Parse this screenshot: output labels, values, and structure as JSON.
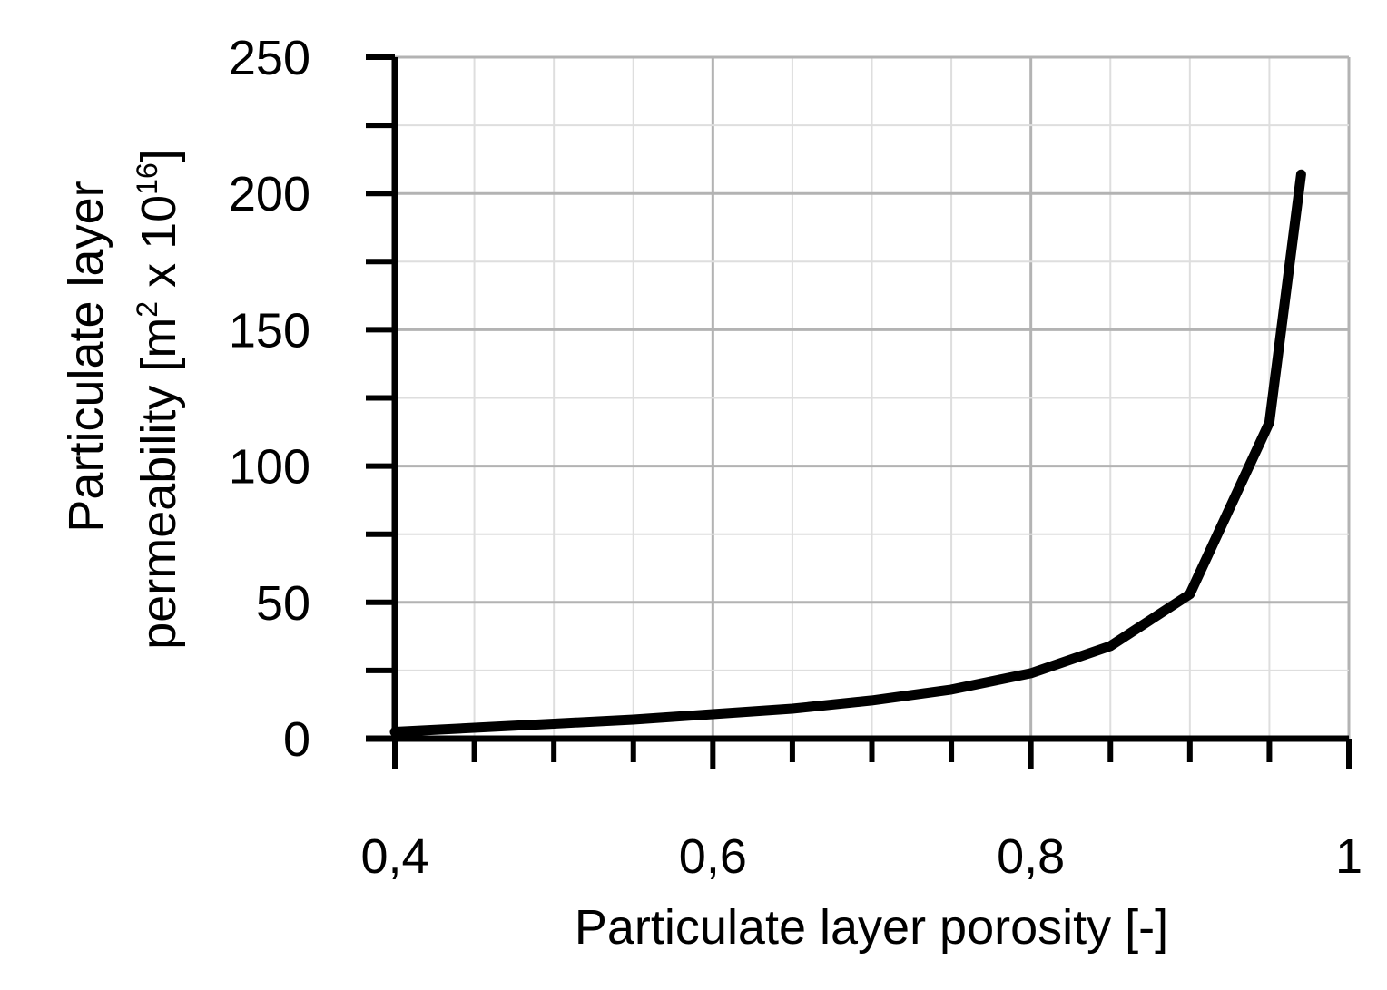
{
  "chart_data": {
    "type": "line",
    "title": "",
    "xlabel": "Particulate layer porosity [-]",
    "ylabel": {
      "line1": "Particulate layer",
      "line2_prefix": "permeability [m",
      "line2_sup1": "2",
      "line2_mid": " x 10",
      "line2_sup2": "16",
      "line2_suffix": "]"
    },
    "xlim": [
      0.4,
      1.0
    ],
    "ylim": [
      0,
      250
    ],
    "x_major_ticks": [
      0.4,
      0.6,
      0.8,
      1.0
    ],
    "x_tick_labels": [
      "0,4",
      "0,6",
      "0,8",
      "1"
    ],
    "x_minor_step": 0.05,
    "y_major_ticks": [
      0,
      50,
      100,
      150,
      200,
      250
    ],
    "y_tick_labels": [
      "0",
      "50",
      "100",
      "150",
      "200",
      "250"
    ],
    "y_minor_step": 25,
    "grid": true,
    "legend": "none",
    "series": [
      {
        "color": "#000000",
        "x": [
          0.4,
          0.45,
          0.5,
          0.55,
          0.6,
          0.65,
          0.7,
          0.75,
          0.8,
          0.85,
          0.9,
          0.95,
          0.97
        ],
        "y": [
          2.5,
          4,
          5.5,
          7,
          9,
          11,
          14,
          18,
          24,
          34,
          53,
          116,
          207
        ]
      }
    ]
  }
}
